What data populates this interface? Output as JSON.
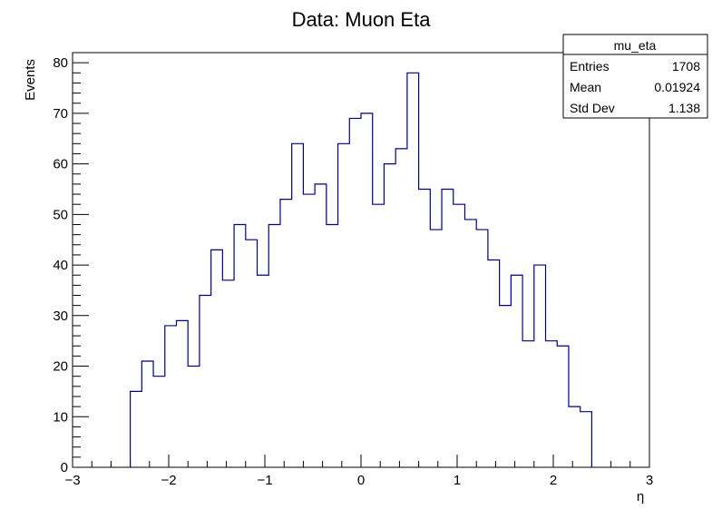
{
  "chart_data": {
    "type": "histogram",
    "title": "Data:  Muon Eta",
    "xlabel": "η",
    "ylabel": "Events",
    "xlim": [
      -3,
      3
    ],
    "ylim": [
      0,
      82
    ],
    "x_ticks": [
      "−3",
      "−2",
      "−1",
      "0",
      "1",
      "2",
      "3"
    ],
    "y_ticks": [
      "0",
      "10",
      "20",
      "30",
      "40",
      "50",
      "60",
      "70",
      "80"
    ],
    "bin_width": 0.12,
    "bins": [
      {
        "x0": -2.4,
        "value": 15
      },
      {
        "x0": -2.28,
        "value": 21
      },
      {
        "x0": -2.16,
        "value": 18
      },
      {
        "x0": -2.04,
        "value": 28
      },
      {
        "x0": -1.92,
        "value": 29
      },
      {
        "x0": -1.8,
        "value": 20
      },
      {
        "x0": -1.68,
        "value": 34
      },
      {
        "x0": -1.56,
        "value": 43
      },
      {
        "x0": -1.44,
        "value": 37
      },
      {
        "x0": -1.32,
        "value": 48
      },
      {
        "x0": -1.2,
        "value": 45
      },
      {
        "x0": -1.08,
        "value": 38
      },
      {
        "x0": -0.96,
        "value": 48
      },
      {
        "x0": -0.84,
        "value": 53
      },
      {
        "x0": -0.72,
        "value": 64
      },
      {
        "x0": -0.6,
        "value": 54
      },
      {
        "x0": -0.48,
        "value": 56
      },
      {
        "x0": -0.36,
        "value": 48
      },
      {
        "x0": -0.24,
        "value": 64
      },
      {
        "x0": -0.12,
        "value": 69
      },
      {
        "x0": 0.0,
        "value": 70
      },
      {
        "x0": 0.12,
        "value": 52
      },
      {
        "x0": 0.24,
        "value": 60
      },
      {
        "x0": 0.36,
        "value": 63
      },
      {
        "x0": 0.48,
        "value": 78
      },
      {
        "x0": 0.6,
        "value": 55
      },
      {
        "x0": 0.72,
        "value": 47
      },
      {
        "x0": 0.84,
        "value": 55
      },
      {
        "x0": 0.96,
        "value": 52
      },
      {
        "x0": 1.08,
        "value": 49
      },
      {
        "x0": 1.2,
        "value": 47
      },
      {
        "x0": 1.32,
        "value": 41
      },
      {
        "x0": 1.44,
        "value": 32
      },
      {
        "x0": 1.56,
        "value": 38
      },
      {
        "x0": 1.68,
        "value": 25
      },
      {
        "x0": 1.8,
        "value": 40
      },
      {
        "x0": 1.92,
        "value": 25
      },
      {
        "x0": 2.04,
        "value": 24
      },
      {
        "x0": 2.16,
        "value": 12
      },
      {
        "x0": 2.28,
        "value": 11
      }
    ],
    "line_color": "#000080",
    "stats_box": {
      "name": "mu_eta",
      "rows": [
        {
          "label": "Entries",
          "value": "1708"
        },
        {
          "label": "Mean",
          "value": "0.01924"
        },
        {
          "label": "Std Dev",
          "value": "1.138"
        }
      ]
    }
  }
}
